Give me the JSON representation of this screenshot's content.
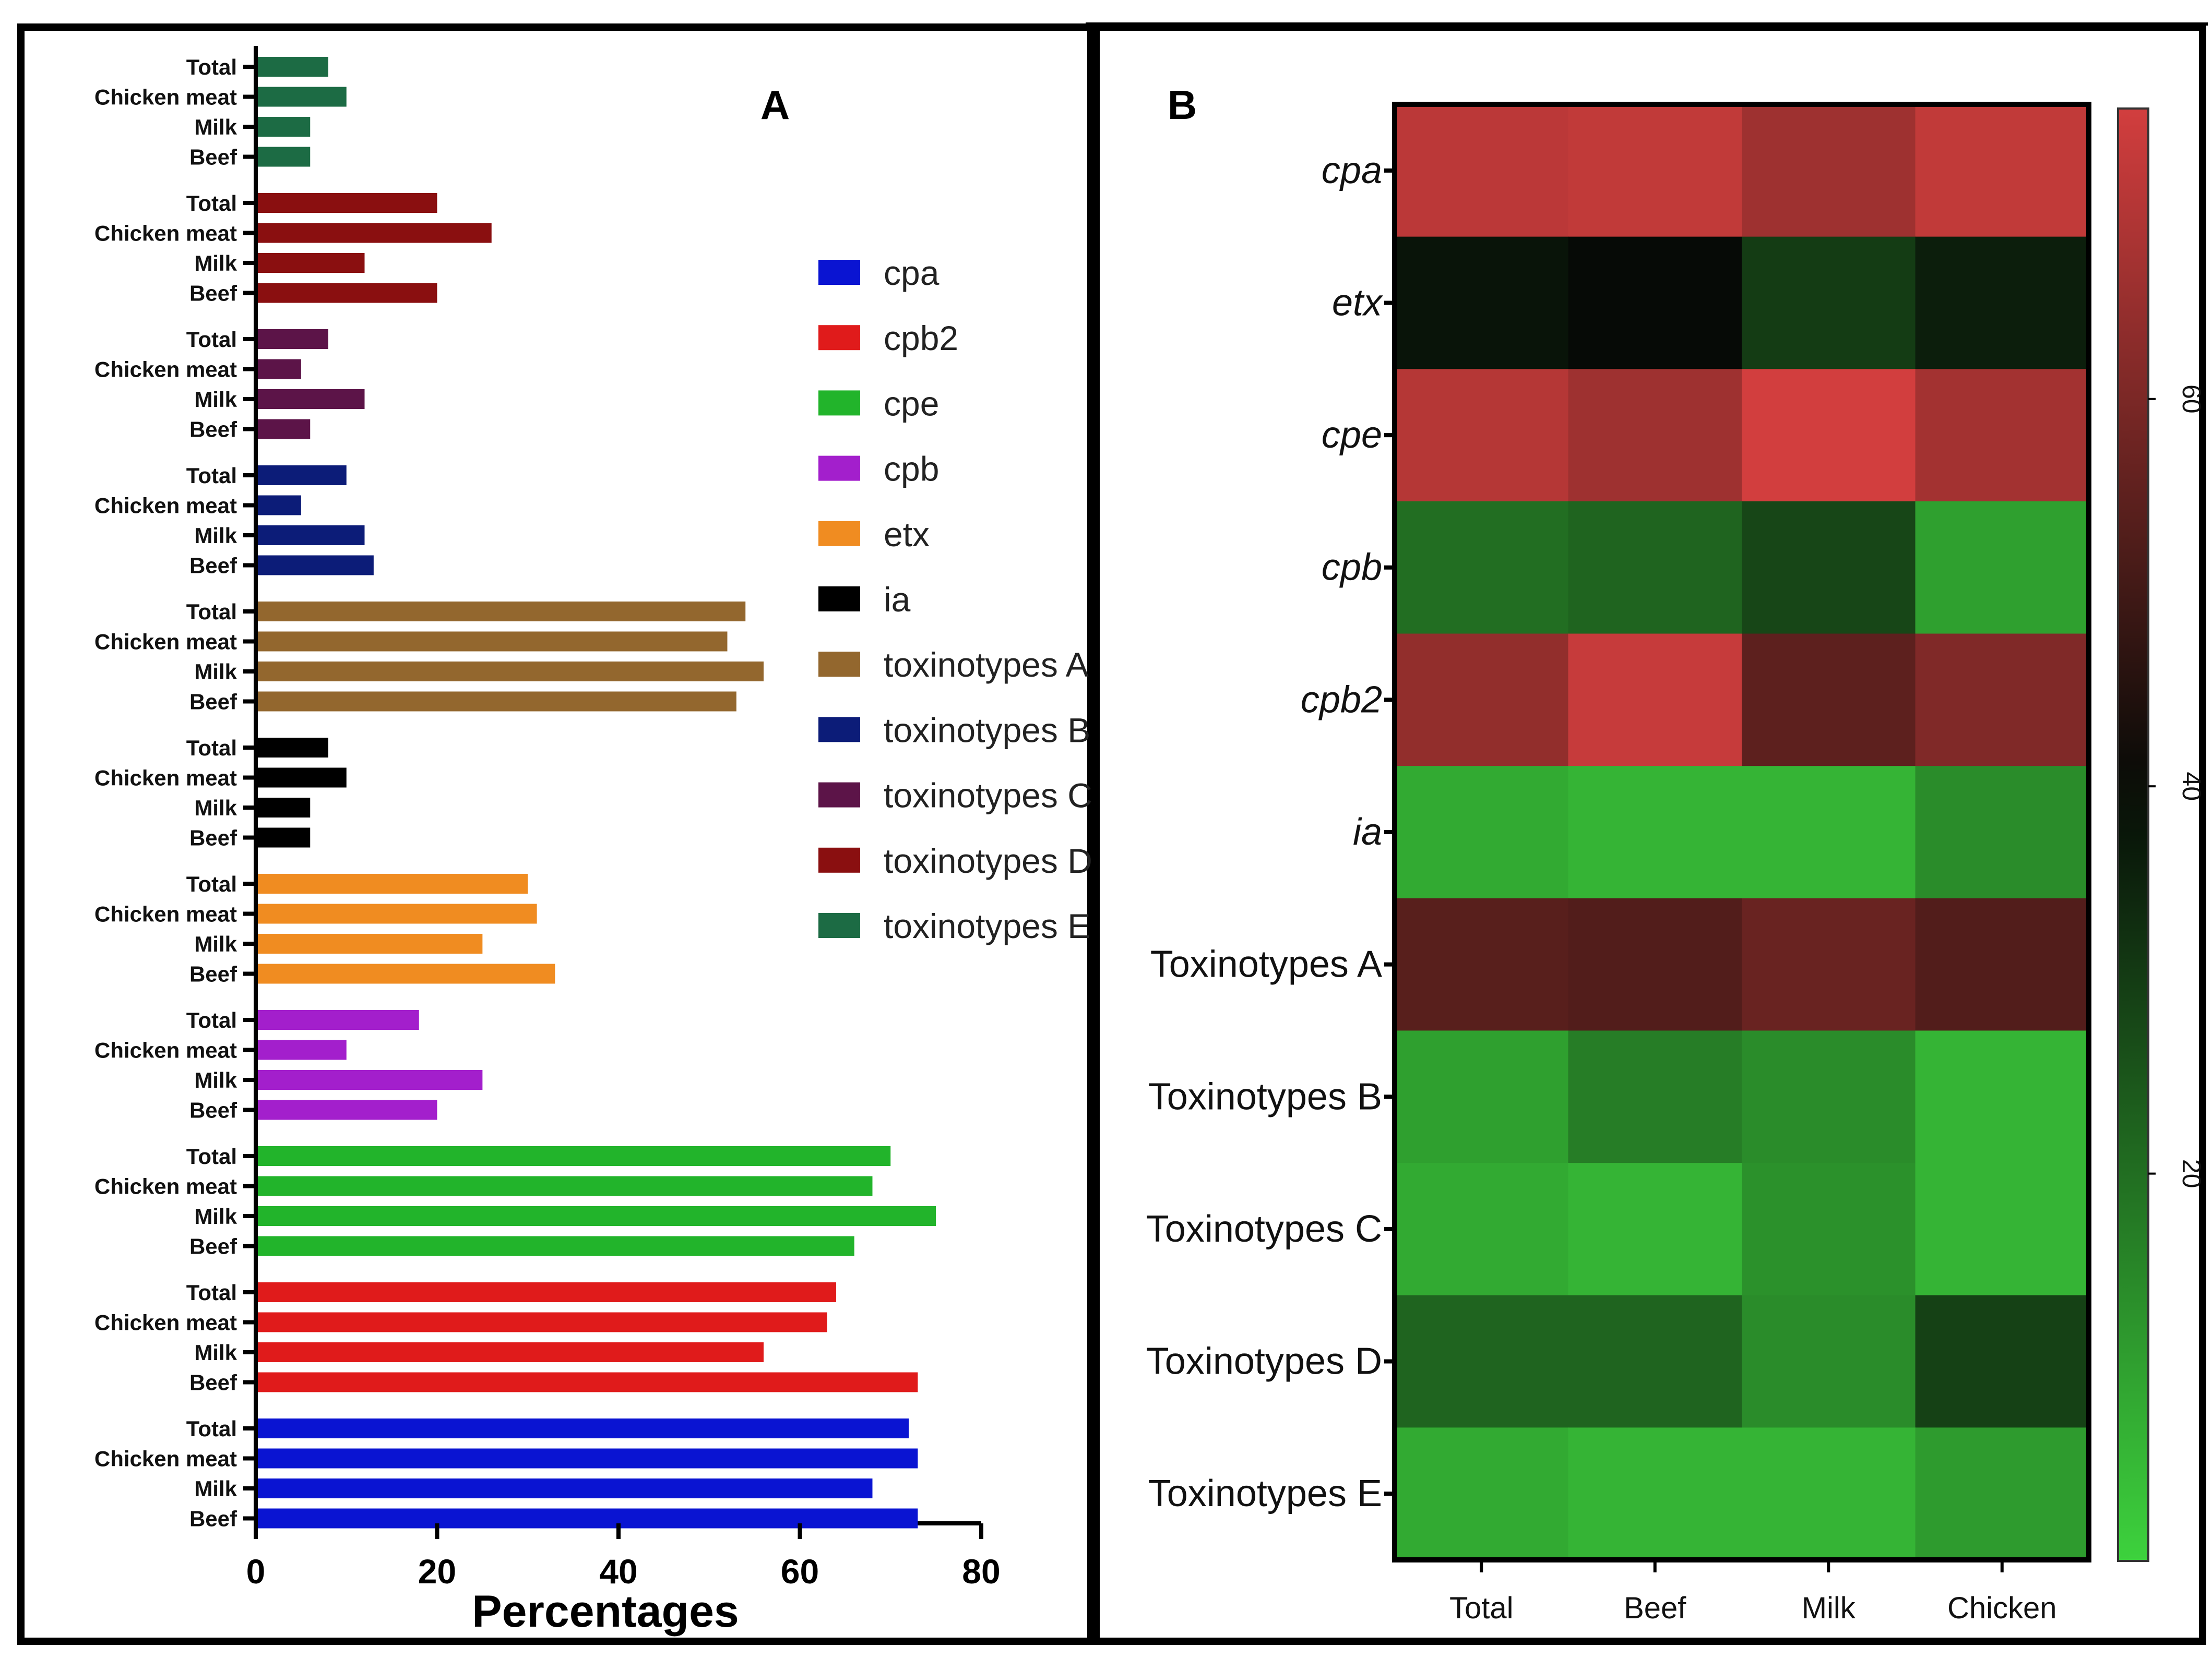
{
  "chart_data": [
    {
      "type": "bar",
      "orientation": "horizontal",
      "panel_label": "A",
      "xlabel": "Percentages",
      "xlim": [
        0,
        80
      ],
      "xticks": [
        0,
        20,
        40,
        60,
        80
      ],
      "sample_labels": [
        "Total",
        "Chicken meat",
        "Milk",
        "Beef"
      ],
      "legend_position": "right",
      "series": [
        {
          "name": "toxinotypes E",
          "color": "#1c6b44",
          "values": [
            8,
            10,
            6,
            6
          ]
        },
        {
          "name": "toxinotypes D",
          "color": "#8a0f10",
          "values": [
            20,
            26,
            12,
            20
          ]
        },
        {
          "name": "toxinotypes C",
          "color": "#5c1448",
          "values": [
            8,
            5,
            12,
            6
          ]
        },
        {
          "name": "toxinotypes B",
          "color": "#0c1c78",
          "values": [
            10,
            5,
            12,
            13
          ]
        },
        {
          "name": "toxinotypes A",
          "color": "#93672e",
          "values": [
            54,
            52,
            56,
            53
          ]
        },
        {
          "name": "ia",
          "color": "#000000",
          "values": [
            8,
            10,
            6,
            6
          ]
        },
        {
          "name": "etx",
          "color": "#f08c21",
          "values": [
            30,
            31,
            25,
            33
          ]
        },
        {
          "name": "cpb",
          "color": "#a31fcc",
          "values": [
            18,
            10,
            25,
            20
          ]
        },
        {
          "name": "cpe",
          "color": "#22b42b",
          "values": [
            70,
            68,
            75,
            66
          ]
        },
        {
          "name": "cpb2",
          "color": "#e01b1b",
          "values": [
            64,
            63,
            56,
            73
          ]
        },
        {
          "name": "cpa",
          "color": "#0a14d2",
          "values": [
            72,
            73,
            68,
            73
          ]
        }
      ],
      "legend": [
        {
          "label": "cpa",
          "color": "#0a14d2"
        },
        {
          "label": "cpb2",
          "color": "#e01b1b"
        },
        {
          "label": "cpe",
          "color": "#22b42b"
        },
        {
          "label": "cpb",
          "color": "#a31fcc"
        },
        {
          "label": "etx",
          "color": "#f08c21"
        },
        {
          "label": "ia",
          "color": "#000000"
        },
        {
          "label": "toxinotypes A",
          "color": "#93672e"
        },
        {
          "label": "toxinotypes B",
          "color": "#0c1c78"
        },
        {
          "label": "toxinotypes C",
          "color": "#5c1448"
        },
        {
          "label": "toxinotypes D",
          "color": "#8a0f10"
        },
        {
          "label": "toxinotypes E",
          "color": "#1c6b44"
        }
      ]
    },
    {
      "type": "heatmap",
      "panel_label": "B",
      "columns": [
        "Total",
        "Beef",
        "Milk",
        "Chicken"
      ],
      "rows": [
        {
          "label": "cpa",
          "italic": true,
          "values": [
            71,
            72,
            66,
            72
          ]
        },
        {
          "label": "etx",
          "italic": true,
          "values": [
            38,
            40,
            30,
            36
          ]
        },
        {
          "label": "cpe",
          "italic": true,
          "values": [
            70,
            66,
            75,
            67
          ]
        },
        {
          "label": "cpb",
          "italic": true,
          "values": [
            20,
            22,
            28,
            10
          ]
        },
        {
          "label": "cpb2",
          "italic": true,
          "values": [
            64,
            73,
            55,
            61
          ]
        },
        {
          "label": "ia",
          "italic": true,
          "values": [
            8,
            6,
            6,
            14
          ]
        },
        {
          "label": "Toxinotypes A",
          "italic": false,
          "values": [
            54,
            53,
            57,
            53
          ]
        },
        {
          "label": "Toxinotypes B",
          "italic": false,
          "values": [
            10,
            17,
            14,
            6
          ]
        },
        {
          "label": "Toxinotypes C",
          "italic": false,
          "values": [
            8,
            6,
            13,
            6
          ]
        },
        {
          "label": "Toxinotypes D",
          "italic": false,
          "values": [
            22,
            22,
            14,
            29
          ]
        },
        {
          "label": "Toxinotypes E",
          "italic": false,
          "values": [
            8,
            6,
            6,
            11
          ]
        }
      ],
      "colorbar": {
        "min": 0,
        "max": 75,
        "ticks": [
          20,
          40,
          60
        ],
        "low_color": "#3dd23d",
        "mid_color": "#060a06",
        "mid_value": 40,
        "high_color": "#d23e3e"
      }
    }
  ]
}
